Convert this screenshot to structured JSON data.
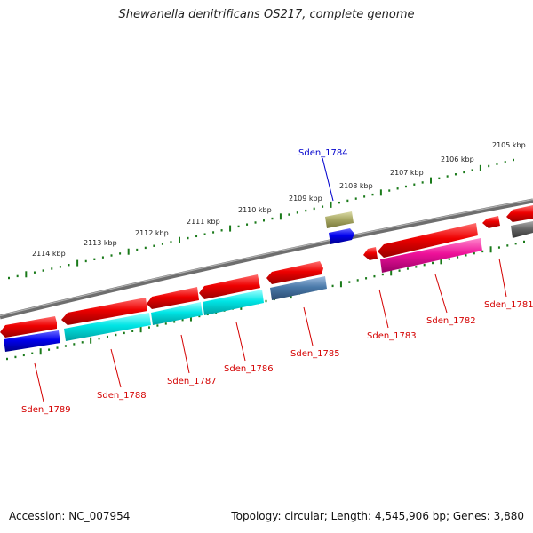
{
  "title": "Shewanella denitrificans OS217, complete genome",
  "accession": "Accession: NC_007954",
  "summary": "Topology: circular; Length: 4,545,906 bp; Genes: 3,880",
  "tick_labels": [
    "2114 kbp",
    "2113 kbp",
    "2112 kbp",
    "2111 kbp",
    "2110 kbp",
    "2109 kbp",
    "2108 kbp",
    "2107 kbp",
    "2106 kbp",
    "2105 kbp"
  ],
  "genes": [
    {
      "name": "Sden_1789",
      "color": "#d40000"
    },
    {
      "name": "Sden_1788",
      "color": "#d40000"
    },
    {
      "name": "Sden_1787",
      "color": "#d40000"
    },
    {
      "name": "Sden_1786",
      "color": "#d40000"
    },
    {
      "name": "Sden_1785",
      "color": "#d40000"
    },
    {
      "name": "Sden_1784",
      "color": "#0000cc"
    },
    {
      "name": "Sden_1783",
      "color": "#d40000"
    },
    {
      "name": "Sden_1782",
      "color": "#d40000"
    },
    {
      "name": "Sden_1781",
      "color": "#d40000"
    }
  ],
  "colors": {
    "backbone": "#808080",
    "tick": "#1a7a1a",
    "cds": "#ee0000",
    "protein": "#0000ee",
    "cyan": "#00e5e5",
    "steel": "#4a7aaa",
    "magenta": "#ee1199",
    "olive": "#aaaa66",
    "gray": "#666666"
  }
}
